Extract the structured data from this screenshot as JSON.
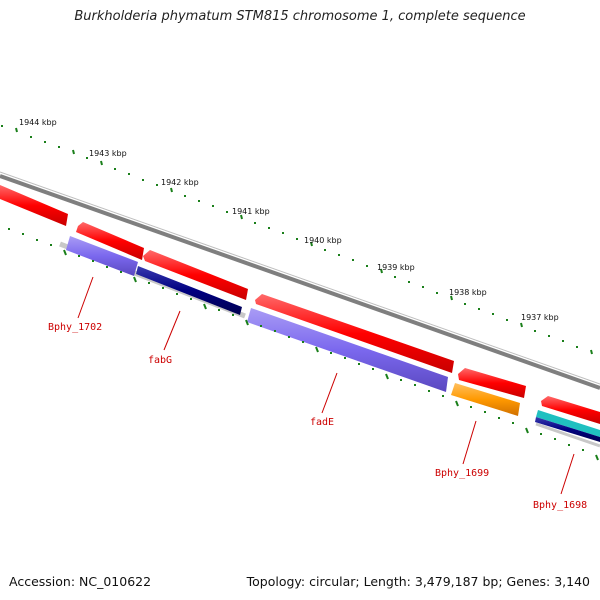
{
  "title": "Burkholderia phymatum STM815 chromosome 1, complete sequence",
  "footer": {
    "accession": "Accession: NC_010622",
    "topology": "Topology: circular; Length: 3,479,187 bp; Genes: 3,140"
  },
  "scale_labels": [
    "1944 kbp",
    "1943 kbp",
    "1942 kbp",
    "1941 kbp",
    "1940 kbp",
    "1939 kbp",
    "1938 kbp",
    "1937 kbp"
  ],
  "gene_labels": [
    "Bphy_1702",
    "fabG",
    "fadE",
    "Bphy_1699",
    "Bphy_1698"
  ],
  "colors": {
    "backbone": "#7f7f7f",
    "cds_forward": "#ff0000",
    "cds_reverse": "#7b68ee",
    "dark_feature": "#000080",
    "orange_feature": "#ff9900",
    "cyan_feature": "#20c0c0",
    "tick": "#1a7f1a",
    "label": "#cc0000"
  }
}
